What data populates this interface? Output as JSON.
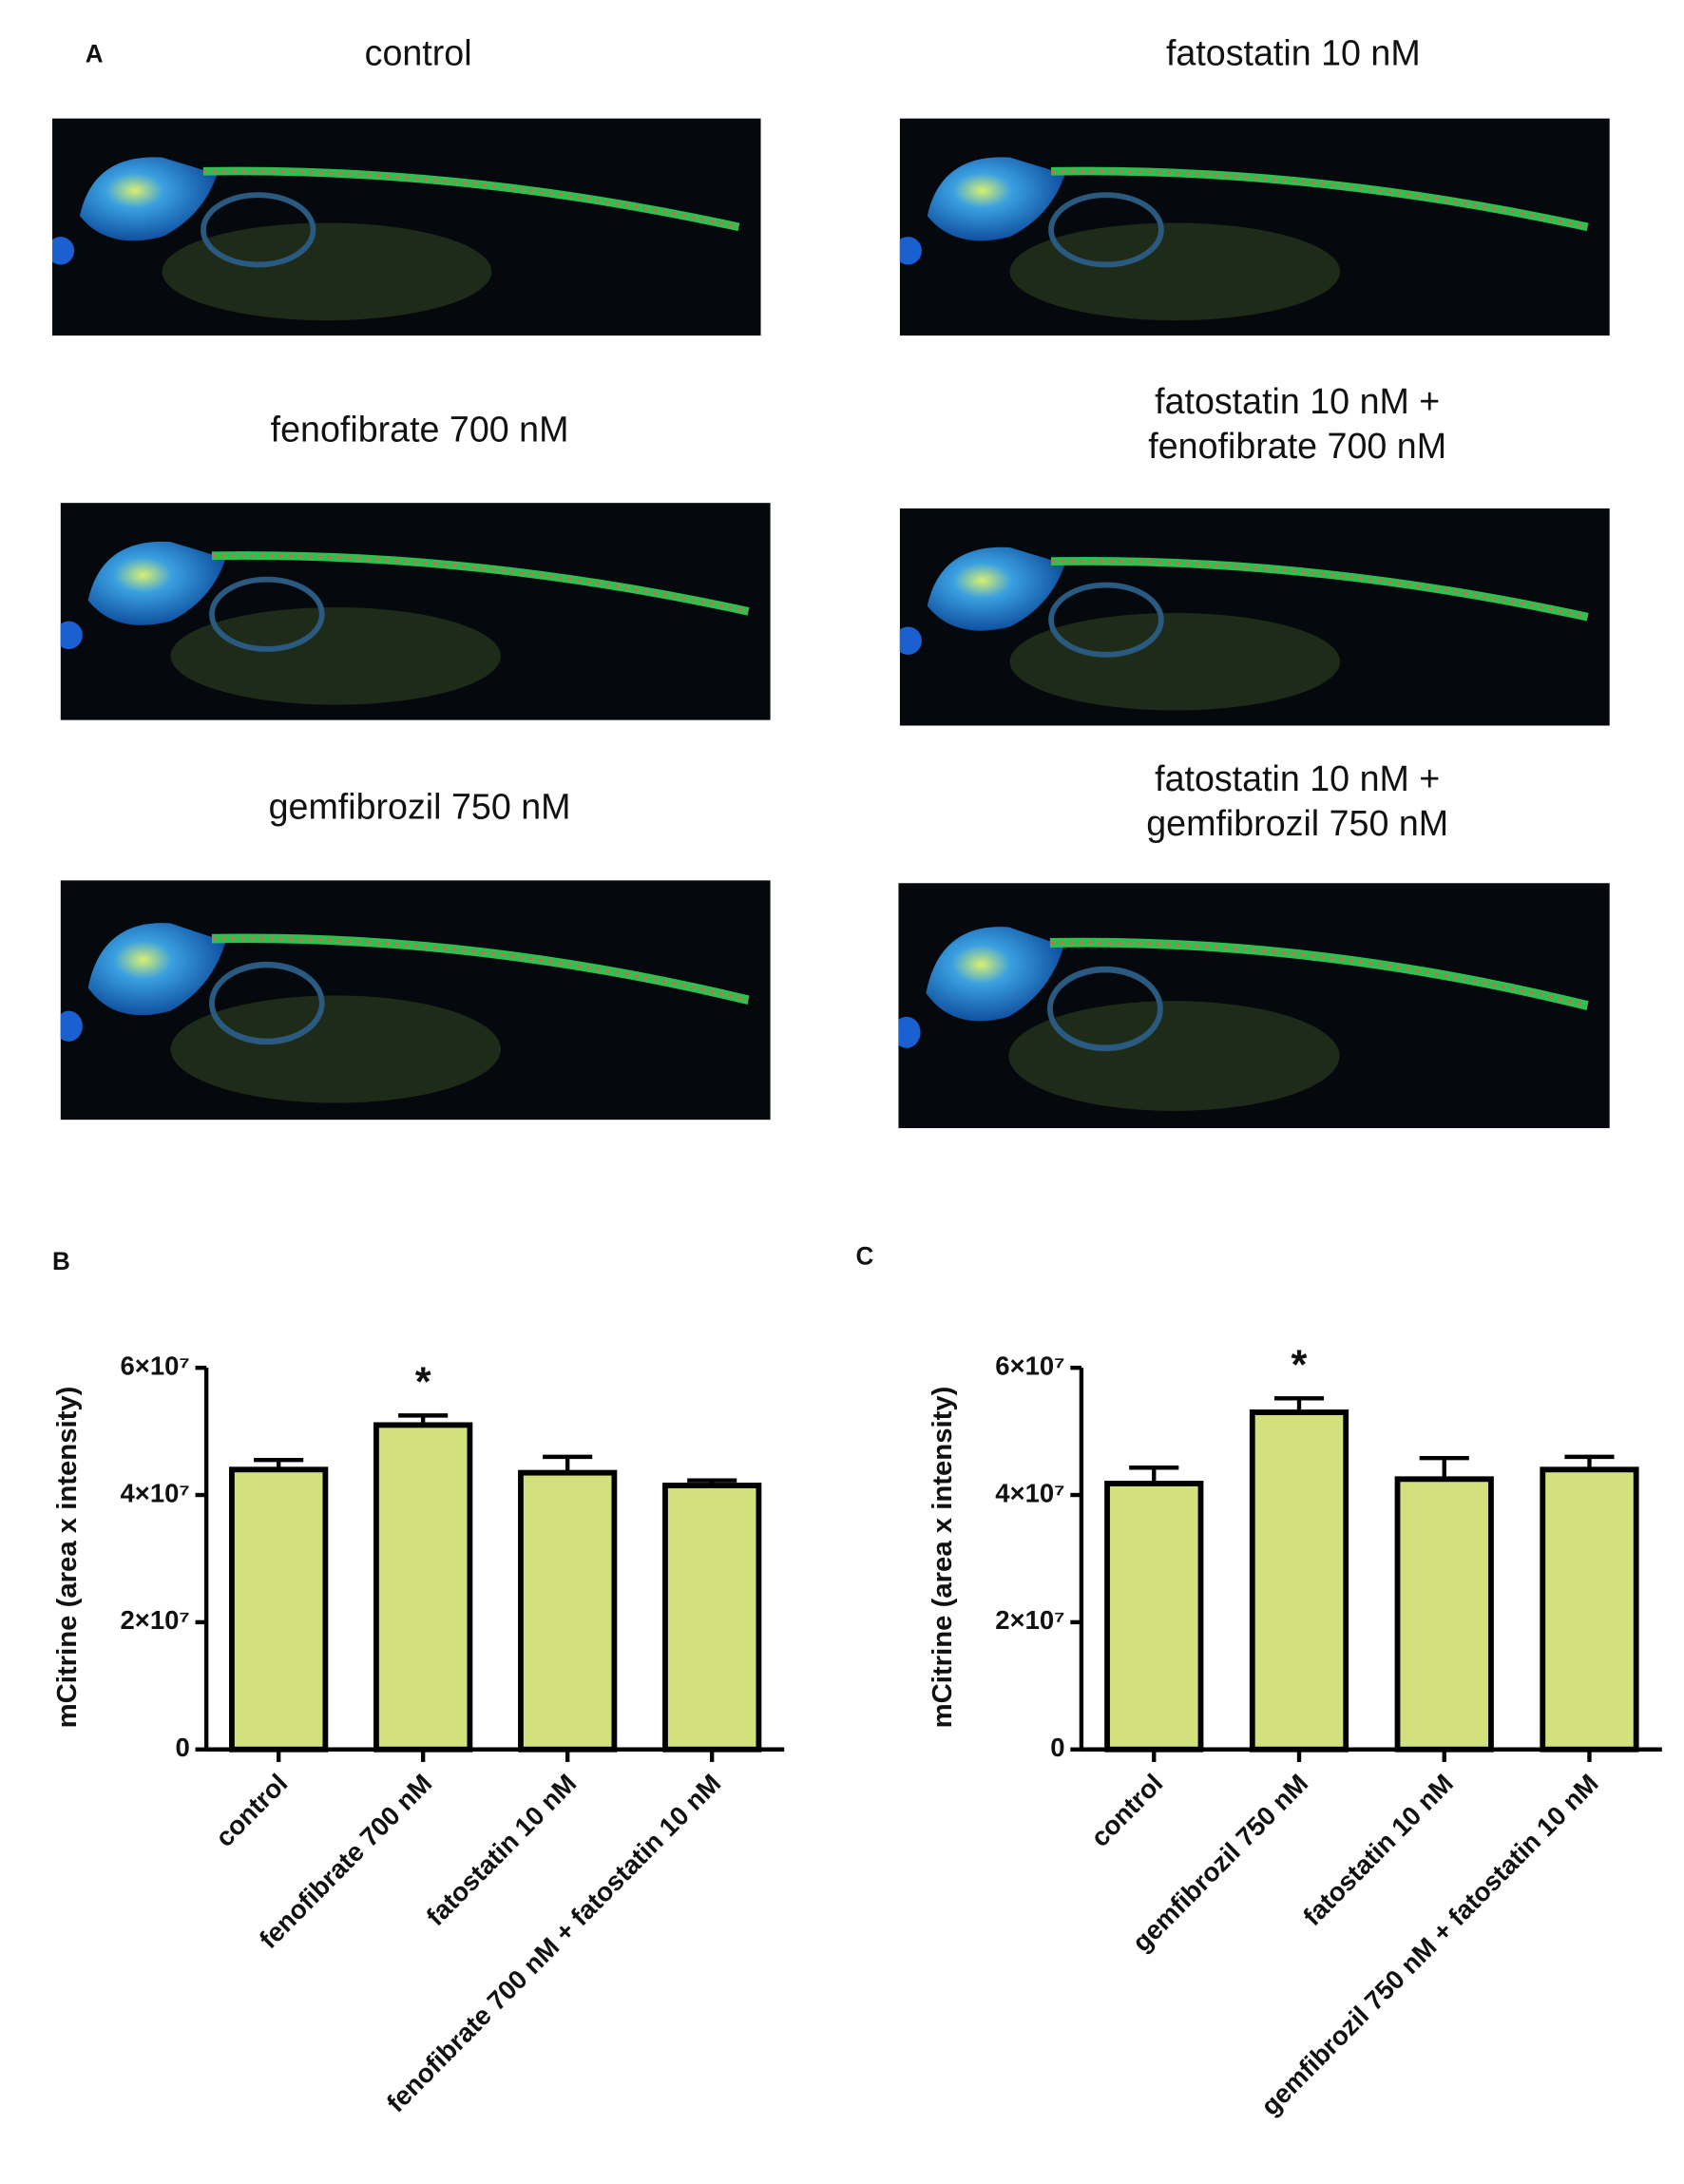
{
  "panel_a": {
    "label": "A",
    "images": [
      {
        "lines": [
          "control"
        ]
      },
      {
        "lines": [
          "fatostatin 10 nM"
        ]
      },
      {
        "lines": [
          "fenofibrate 700 nM"
        ]
      },
      {
        "lines": [
          "fatostatin 10 nM +",
          "fenofibrate 700 nM"
        ]
      },
      {
        "lines": [
          "gemfibrozil 750 nM"
        ]
      },
      {
        "lines": [
          "fatostatin 10 nM +",
          "gemfibrozil 750 nM"
        ]
      }
    ]
  },
  "chart_data": [
    {
      "type": "bar",
      "panel_label": "B",
      "y_label": "mCitrine (area x intensity)",
      "color": "#d3e07e",
      "categories": [
        "control",
        "fenofibrate 700 nM",
        "fatostatin 10 nM",
        "fenofibrate 700 nM + fatostatin 10 nM"
      ],
      "values": [
        44000000,
        51000000,
        43500000,
        41500000
      ],
      "errors": [
        1500000,
        1500000,
        2500000,
        800000
      ],
      "annotations": [
        {
          "text": "*",
          "category": "fenofibrate 700 nM"
        }
      ],
      "ylim": [
        0,
        60000000
      ],
      "yticks": [
        {
          "value": 0,
          "label": "0"
        },
        {
          "value": 20000000,
          "label": "2×10⁷"
        },
        {
          "value": 40000000,
          "label": "4×10⁷"
        },
        {
          "value": 60000000,
          "label": "6×10⁷"
        }
      ]
    },
    {
      "type": "bar",
      "panel_label": "C",
      "y_label": "mCitrine (area x intensity)",
      "color": "#d3e07e",
      "categories": [
        "control",
        "gemfibrozil 750 nM",
        "fatostatin 10 nM",
        "gemfibrozil 750 nM + fatostatin 10 nM"
      ],
      "values": [
        41800000,
        53000000,
        42500000,
        44000000
      ],
      "errors": [
        2500000,
        2200000,
        3300000,
        2000000
      ],
      "annotations": [
        {
          "text": "*",
          "category": "gemfibrozil 750 nM"
        }
      ],
      "ylim": [
        0,
        60000000
      ],
      "yticks": [
        {
          "value": 0,
          "label": "0"
        },
        {
          "value": 20000000,
          "label": "2×10⁷"
        },
        {
          "value": 40000000,
          "label": "4×10⁷"
        },
        {
          "value": 60000000,
          "label": "6×10⁷"
        }
      ]
    }
  ]
}
